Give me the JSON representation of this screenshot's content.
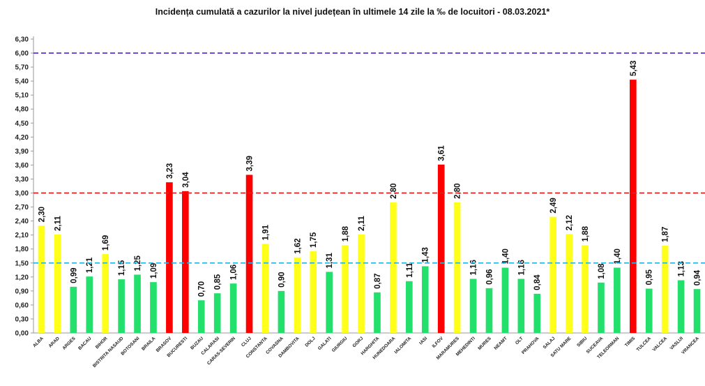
{
  "chart_data": {
    "type": "bar",
    "title": "Incidența cumulată a cazurilor la nivel județean în ultimele 14 zile la ‰ de locuitori - 08.03.2021*",
    "xlabel": "",
    "ylabel": "",
    "ylim": [
      0,
      6.3
    ],
    "ytick_labels": [
      "0,00",
      "0,30",
      "0,60",
      "0,90",
      "1,20",
      "1,50",
      "1,80",
      "2,10",
      "2,40",
      "2,70",
      "3,00",
      "3,30",
      "3,60",
      "3,90",
      "4,20",
      "4,50",
      "4,80",
      "5,10",
      "5,40",
      "5,70",
      "6,00",
      "6,30"
    ],
    "grid": false,
    "legend": "none",
    "categories": [
      "ALBA",
      "ARAD",
      "ARGES",
      "BACAU",
      "BIHOR",
      "BISTRITA NASAUD",
      "BOTOSANI",
      "BRAILA",
      "BRASOV",
      "BUCURESTI",
      "BUZAU",
      "CALARASI",
      "CARAS-SEVERIN",
      "CLUJ",
      "CONSTANTA",
      "COVASNA",
      "DAMBOVITA",
      "DOLJ",
      "GALATI",
      "GIURGIU",
      "GORJ",
      "HARGHITA",
      "HUNEDOARA",
      "IALOMITA",
      "IASI",
      "ILFOV",
      "MARAMURES",
      "MEHEDINTI",
      "MURES",
      "NEAMT",
      "OLT",
      "PRAHOVA",
      "SALAJ",
      "SATU MARE",
      "SIBIU",
      "SUCEAVA",
      "TELEORMAN",
      "TIMIS",
      "TULCEA",
      "VALCEA",
      "VASLUI",
      "VRANCEA"
    ],
    "values": [
      2.3,
      2.11,
      0.99,
      1.21,
      1.69,
      1.15,
      1.25,
      1.09,
      3.23,
      3.04,
      0.7,
      0.85,
      1.06,
      3.39,
      1.91,
      0.9,
      1.62,
      1.75,
      1.31,
      1.88,
      2.11,
      0.87,
      2.8,
      1.11,
      1.43,
      3.61,
      2.8,
      1.16,
      0.96,
      1.4,
      1.16,
      0.84,
      2.49,
      2.12,
      1.88,
      1.08,
      1.4,
      5.43,
      0.95,
      1.87,
      1.13,
      0.94
    ],
    "value_labels": [
      "2,30",
      "2,11",
      "0,99",
      "1,21",
      "1,69",
      "1,15",
      "1,25",
      "1,09",
      "3,23",
      "3,04",
      "0,70",
      "0,85",
      "1,06",
      "3,39",
      "1,91",
      "0,90",
      "1,62",
      "1,75",
      "1,31",
      "1,88",
      "2,11",
      "0,87",
      "2,80",
      "1,11",
      "1,43",
      "3,61",
      "2,80",
      "1,16",
      "0,96",
      "1,40",
      "1,16",
      "0,84",
      "2,49",
      "2,12",
      "1,88",
      "1,08",
      "1,40",
      "5,43",
      "0,95",
      "1,87",
      "1,13",
      "0,94"
    ],
    "thresholds": [
      {
        "value": 1.5,
        "color": "#2ab3e0"
      },
      {
        "value": 3.0,
        "color": "#e02020"
      },
      {
        "value": 6.0,
        "color": "#6a3dd6"
      }
    ],
    "colors": {
      "low": "#22e06b",
      "mid": "#ffff1a",
      "high": "#ff0000"
    }
  }
}
